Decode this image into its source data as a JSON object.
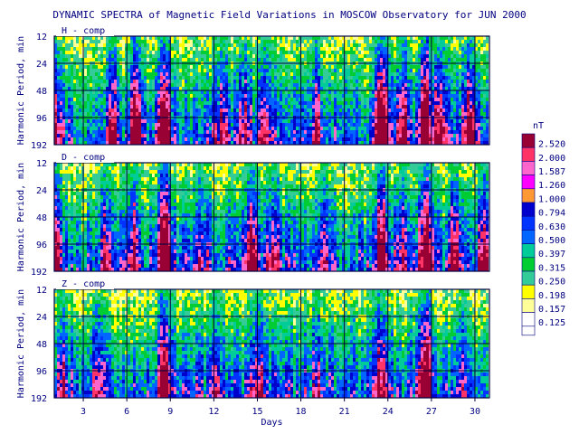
{
  "title": "DYNAMIC SPECTRA of Magnetic Field Variations in MOSCOW Observatory for JUN 2000",
  "chart_data": [
    {
      "type": "heatmap",
      "panel_label": "H - comp",
      "ylabel": "Harmonic Period, min",
      "y_ticks": [
        "12",
        "24",
        "48",
        "96",
        "192"
      ],
      "x_range": [
        1,
        31
      ],
      "intensity_bands": [
        [
          1.0,
          0.55
        ],
        [
          5.0,
          0.6
        ],
        [
          6.5,
          0.8
        ],
        [
          8.5,
          1.0
        ],
        [
          12.5,
          0.6
        ],
        [
          14.0,
          0.55
        ],
        [
          15.5,
          0.5
        ],
        [
          19.0,
          0.55
        ],
        [
          23.5,
          1.0
        ],
        [
          25.0,
          0.55
        ],
        [
          26.5,
          1.0
        ],
        [
          27.5,
          0.8
        ],
        [
          29.5,
          0.7
        ]
      ]
    },
    {
      "type": "heatmap",
      "panel_label": "D - comp",
      "ylabel": "Harmonic Period, min",
      "y_ticks": [
        "12",
        "24",
        "48",
        "96",
        "192"
      ],
      "x_range": [
        1,
        31
      ],
      "intensity_bands": [
        [
          1.0,
          0.7
        ],
        [
          4.5,
          0.55
        ],
        [
          6.5,
          0.6
        ],
        [
          8.5,
          1.0
        ],
        [
          11.0,
          0.5
        ],
        [
          14.5,
          0.6
        ],
        [
          16.0,
          0.5
        ],
        [
          19.5,
          0.5
        ],
        [
          23.5,
          0.9
        ],
        [
          25.0,
          0.6
        ],
        [
          26.5,
          1.0
        ],
        [
          28.5,
          0.6
        ],
        [
          30.5,
          0.55
        ]
      ]
    },
    {
      "type": "heatmap",
      "panel_label": "Z - comp",
      "ylabel": "Harmonic Period, min",
      "y_ticks": [
        "12",
        "24",
        "48",
        "96",
        "192"
      ],
      "x_label": "Days",
      "x_ticks": [
        "3",
        "6",
        "9",
        "12",
        "15",
        "18",
        "21",
        "24",
        "27",
        "30"
      ],
      "x_range": [
        1,
        31
      ],
      "intensity_bands": [
        [
          1.5,
          0.45
        ],
        [
          4.0,
          0.45
        ],
        [
          8.5,
          0.8
        ],
        [
          12.0,
          0.4
        ],
        [
          15.0,
          0.5
        ],
        [
          19.0,
          0.4
        ],
        [
          23.5,
          0.6
        ],
        [
          26.5,
          0.95
        ],
        [
          29.0,
          0.4
        ]
      ]
    }
  ],
  "legend": {
    "unit": "nT",
    "levels": [
      "2.520",
      "2.000",
      "1.587",
      "1.260",
      "1.000",
      "0.794",
      "0.630",
      "0.500",
      "0.397",
      "0.315",
      "0.250",
      "0.198",
      "0.157",
      "0.125"
    ],
    "colors": [
      "#990033",
      "#ff3366",
      "#ff66cc",
      "#ff00ff",
      "#ff9933",
      "#0000cc",
      "#0033ff",
      "#0066ff",
      "#00cc99",
      "#00cc33",
      "#33cc99",
      "#ffff00",
      "#ffff99",
      "#ffffff"
    ]
  }
}
